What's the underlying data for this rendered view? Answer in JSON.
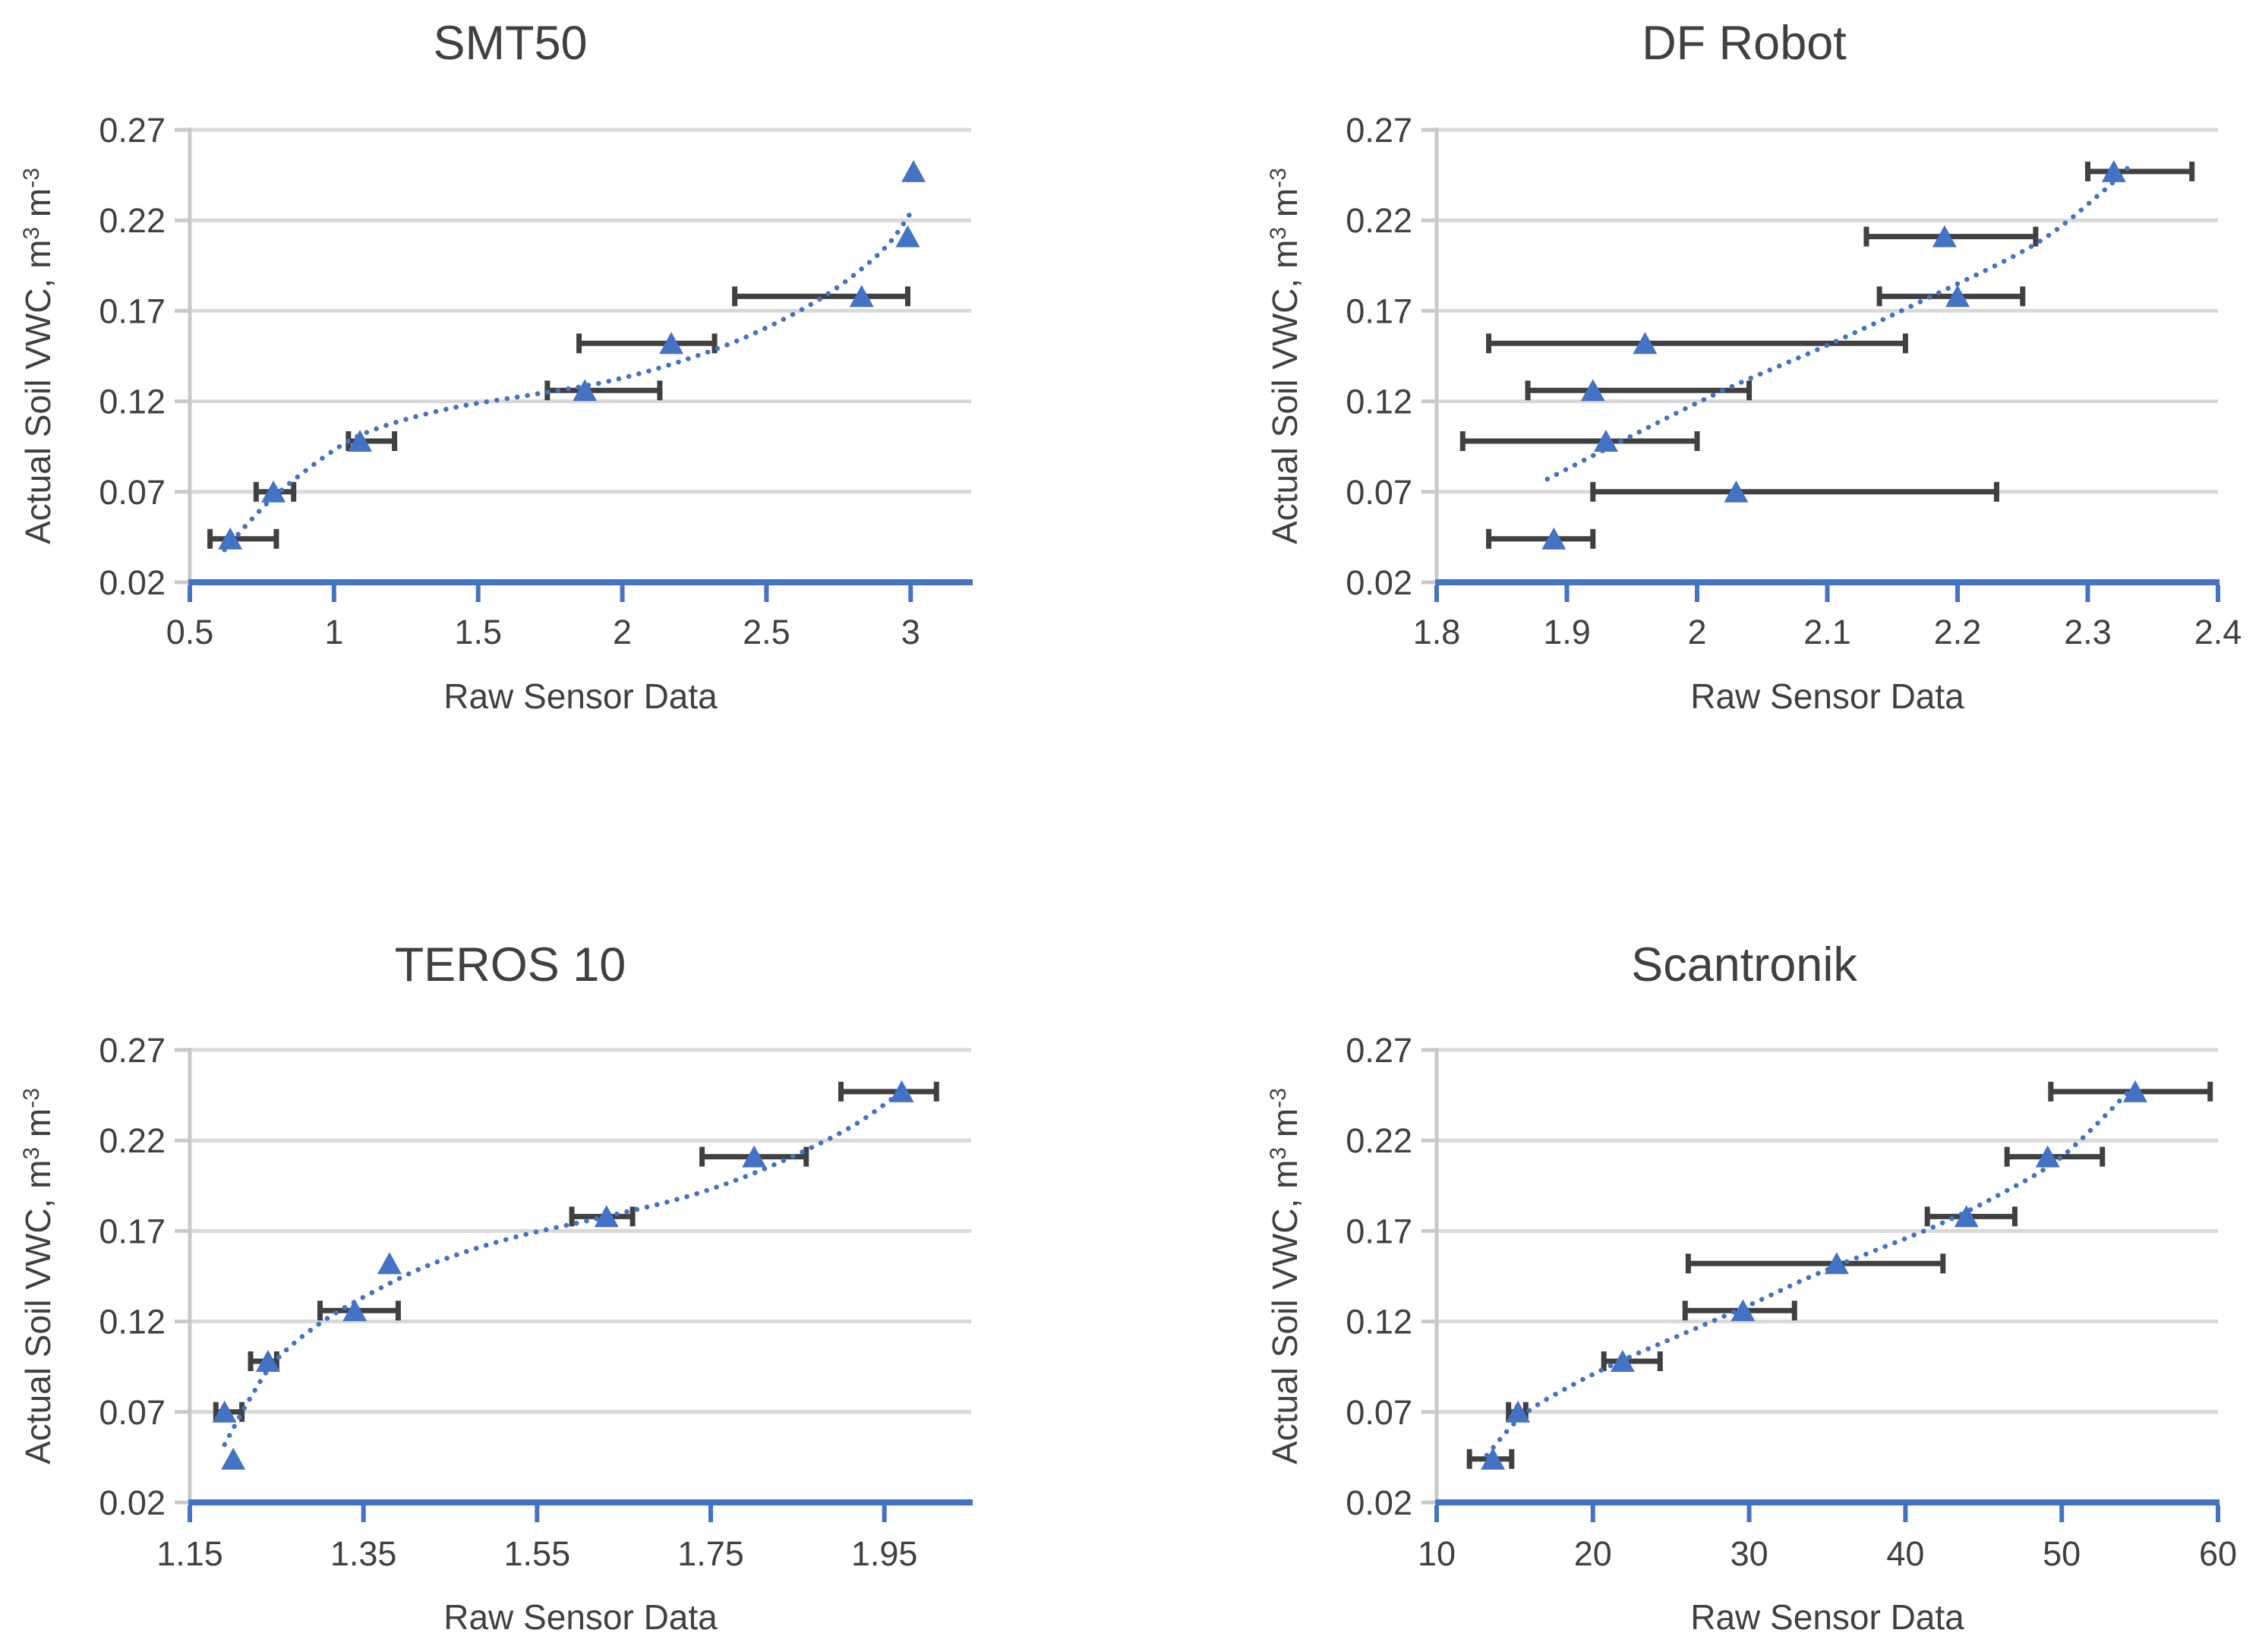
{
  "figure": {
    "background": "#FFFFFF"
  },
  "styles": {
    "marker_color": "#4472C4",
    "trend_color": "#4472C4",
    "error_bar_color": "#404040",
    "gridline_color": "#D9D9D9",
    "y_axis_line_color": "#C9C9C9",
    "x_axis_line_color": "#4472C4",
    "text_color": "#404040"
  },
  "y_axis": {
    "label": "Actual Soil VWC, m³ m⁻³",
    "label_parts": [
      {
        "t": "Actual Soil VWC, m",
        "sup": false
      },
      {
        "t": "3",
        "sup": true
      },
      {
        "t": " m",
        "sup": false
      },
      {
        "t": "-3",
        "sup": true
      }
    ],
    "min": 0.02,
    "max": 0.27,
    "ticks": [
      {
        "v": 0.02,
        "label": "0.02"
      },
      {
        "v": 0.07,
        "label": "0.07"
      },
      {
        "v": 0.12,
        "label": "0.12"
      },
      {
        "v": 0.17,
        "label": "0.17"
      },
      {
        "v": 0.22,
        "label": "0.22"
      },
      {
        "v": 0.27,
        "label": "0.27"
      }
    ]
  },
  "chart_data": [
    {
      "type": "scatter",
      "title": "SMT50",
      "xlabel": "Raw Sensor Data",
      "ylabel": "Actual Soil VWC, m3 m-3",
      "xlim": [
        0.5,
        3.21
      ],
      "ylim": [
        0.02,
        0.27
      ],
      "grid": "horizontal",
      "legend": "none",
      "x_ticks": [
        {
          "v": 0.5,
          "label": "0.5"
        },
        {
          "v": 1,
          "label": "1"
        },
        {
          "v": 1.5,
          "label": "1.5"
        },
        {
          "v": 2,
          "label": "2"
        },
        {
          "v": 2.5,
          "label": "2.5"
        },
        {
          "v": 3,
          "label": "3"
        }
      ],
      "points": [
        {
          "x": 0.64,
          "y": 0.044,
          "x_err_low": 0.57,
          "x_err_high": 0.8
        },
        {
          "x": 0.79,
          "y": 0.07,
          "x_err_low": 0.73,
          "x_err_high": 0.86
        },
        {
          "x": 1.09,
          "y": 0.098,
          "x_err_low": 1.05,
          "x_err_high": 1.21
        },
        {
          "x": 1.87,
          "y": 0.126,
          "x_err_low": 1.74,
          "x_err_high": 2.13
        },
        {
          "x": 2.17,
          "y": 0.152,
          "x_err_low": 1.85,
          "x_err_high": 2.32
        },
        {
          "x": 2.83,
          "y": 0.178,
          "x_err_low": 2.39,
          "x_err_high": 2.99
        },
        {
          "x": 2.99,
          "y": 0.211,
          "x_err_low": null,
          "x_err_high": null
        },
        {
          "x": 3.01,
          "y": 0.247,
          "x_err_low": null,
          "x_err_high": null
        }
      ],
      "trendline": [
        [
          0.62,
          0.038
        ],
        [
          0.79,
          0.067
        ],
        [
          1.0,
          0.093
        ],
        [
          1.15,
          0.105
        ],
        [
          1.4,
          0.116
        ],
        [
          1.7,
          0.124
        ],
        [
          1.95,
          0.131
        ],
        [
          2.2,
          0.142
        ],
        [
          2.45,
          0.157
        ],
        [
          2.7,
          0.178
        ],
        [
          2.9,
          0.203
        ],
        [
          3.0,
          0.224
        ]
      ]
    },
    {
      "type": "scatter",
      "title": "DF Robot",
      "xlabel": "Raw Sensor Data",
      "ylabel": "Actual Soil VWC, m3 m-3",
      "xlim": [
        1.8,
        2.4
      ],
      "ylim": [
        0.02,
        0.27
      ],
      "grid": "horizontal",
      "legend": "none",
      "x_ticks": [
        {
          "v": 1.8,
          "label": "1.8"
        },
        {
          "v": 1.9,
          "label": "1.9"
        },
        {
          "v": 2,
          "label": "2"
        },
        {
          "v": 2.1,
          "label": "2.1"
        },
        {
          "v": 2.2,
          "label": "2.2"
        },
        {
          "v": 2.3,
          "label": "2.3"
        },
        {
          "v": 2.4,
          "label": "2.4"
        }
      ],
      "points": [
        {
          "x": 1.89,
          "y": 0.044,
          "x_err_low": 1.84,
          "x_err_high": 1.92
        },
        {
          "x": 2.03,
          "y": 0.07,
          "x_err_low": 1.92,
          "x_err_high": 2.23
        },
        {
          "x": 1.93,
          "y": 0.098,
          "x_err_low": 1.82,
          "x_err_high": 2.0
        },
        {
          "x": 1.92,
          "y": 0.126,
          "x_err_low": 1.87,
          "x_err_high": 2.04
        },
        {
          "x": 1.96,
          "y": 0.152,
          "x_err_low": 1.84,
          "x_err_high": 2.16
        },
        {
          "x": 2.2,
          "y": 0.178,
          "x_err_low": 2.14,
          "x_err_high": 2.25
        },
        {
          "x": 2.19,
          "y": 0.211,
          "x_err_low": 2.13,
          "x_err_high": 2.26
        },
        {
          "x": 2.32,
          "y": 0.247,
          "x_err_low": 2.3,
          "x_err_high": 2.38
        }
      ],
      "trendline": [
        [
          1.885,
          0.077
        ],
        [
          1.95,
          0.101
        ],
        [
          2.02,
          0.126
        ],
        [
          2.1,
          0.151
        ],
        [
          2.18,
          0.178
        ],
        [
          2.26,
          0.207
        ],
        [
          2.31,
          0.235
        ],
        [
          2.335,
          0.252
        ]
      ]
    },
    {
      "type": "scatter",
      "title": "TEROS 10",
      "xlabel": "Raw Sensor Data",
      "ylabel": "Actual Soil VWC, m3 m-3",
      "xlim": [
        1.15,
        2.05
      ],
      "ylim": [
        0.02,
        0.27
      ],
      "grid": "horizontal",
      "legend": "none",
      "x_ticks": [
        {
          "v": 1.15,
          "label": "1.15"
        },
        {
          "v": 1.35,
          "label": "1.35"
        },
        {
          "v": 1.55,
          "label": "1.55"
        },
        {
          "v": 1.75,
          "label": "1.75"
        },
        {
          "v": 1.95,
          "label": "1.95"
        }
      ],
      "points": [
        {
          "x": 1.2,
          "y": 0.044,
          "x_err_low": null,
          "x_err_high": null
        },
        {
          "x": 1.19,
          "y": 0.07,
          "x_err_low": 1.18,
          "x_err_high": 1.21
        },
        {
          "x": 1.24,
          "y": 0.098,
          "x_err_low": 1.22,
          "x_err_high": 1.25
        },
        {
          "x": 1.34,
          "y": 0.126,
          "x_err_low": 1.3,
          "x_err_high": 1.39
        },
        {
          "x": 1.38,
          "y": 0.152,
          "x_err_low": null,
          "x_err_high": null
        },
        {
          "x": 1.63,
          "y": 0.178,
          "x_err_low": 1.59,
          "x_err_high": 1.66
        },
        {
          "x": 1.8,
          "y": 0.211,
          "x_err_low": 1.74,
          "x_err_high": 1.86
        },
        {
          "x": 1.97,
          "y": 0.247,
          "x_err_low": 1.9,
          "x_err_high": 2.01
        }
      ],
      "trendline": [
        [
          1.19,
          0.052
        ],
        [
          1.22,
          0.078
        ],
        [
          1.25,
          0.099
        ],
        [
          1.3,
          0.119
        ],
        [
          1.36,
          0.136
        ],
        [
          1.43,
          0.152
        ],
        [
          1.52,
          0.166
        ],
        [
          1.63,
          0.178
        ],
        [
          1.73,
          0.19
        ],
        [
          1.82,
          0.206
        ],
        [
          1.91,
          0.227
        ],
        [
          1.97,
          0.247
        ]
      ]
    },
    {
      "type": "scatter",
      "title": "Scantronik",
      "xlabel": "Raw Sensor Data",
      "ylabel": "Actual Soil VWC, m3 m-3",
      "xlim": [
        10,
        60
      ],
      "ylim": [
        0.02,
        0.27
      ],
      "grid": "horizontal",
      "legend": "none",
      "x_ticks": [
        {
          "v": 10,
          "label": "10"
        },
        {
          "v": 20,
          "label": "20"
        },
        {
          "v": 30,
          "label": "30"
        },
        {
          "v": 40,
          "label": "40"
        },
        {
          "v": 50,
          "label": "50"
        },
        {
          "v": 60,
          "label": "60"
        }
      ],
      "points": [
        {
          "x": 13.6,
          "y": 0.044,
          "x_err_low": 12.1,
          "x_err_high": 14.8
        },
        {
          "x": 15.2,
          "y": 0.07,
          "x_err_low": 14.6,
          "x_err_high": 15.7
        },
        {
          "x": 21.9,
          "y": 0.098,
          "x_err_low": 20.7,
          "x_err_high": 24.3
        },
        {
          "x": 29.6,
          "y": 0.126,
          "x_err_low": 25.9,
          "x_err_high": 32.9
        },
        {
          "x": 35.6,
          "y": 0.152,
          "x_err_low": 26.1,
          "x_err_high": 42.4
        },
        {
          "x": 43.9,
          "y": 0.178,
          "x_err_low": 41.4,
          "x_err_high": 47.0
        },
        {
          "x": 49.1,
          "y": 0.211,
          "x_err_low": 46.5,
          "x_err_high": 52.6
        },
        {
          "x": 54.7,
          "y": 0.247,
          "x_err_low": 49.3,
          "x_err_high": 59.5
        }
      ],
      "trendline": [
        [
          13.2,
          0.046
        ],
        [
          15.5,
          0.068
        ],
        [
          18.5,
          0.084
        ],
        [
          22,
          0.099
        ],
        [
          26,
          0.114
        ],
        [
          30,
          0.129
        ],
        [
          34,
          0.145
        ],
        [
          38,
          0.159
        ],
        [
          42,
          0.173
        ],
        [
          46,
          0.19
        ],
        [
          50,
          0.211
        ],
        [
          54.4,
          0.248
        ]
      ]
    }
  ]
}
